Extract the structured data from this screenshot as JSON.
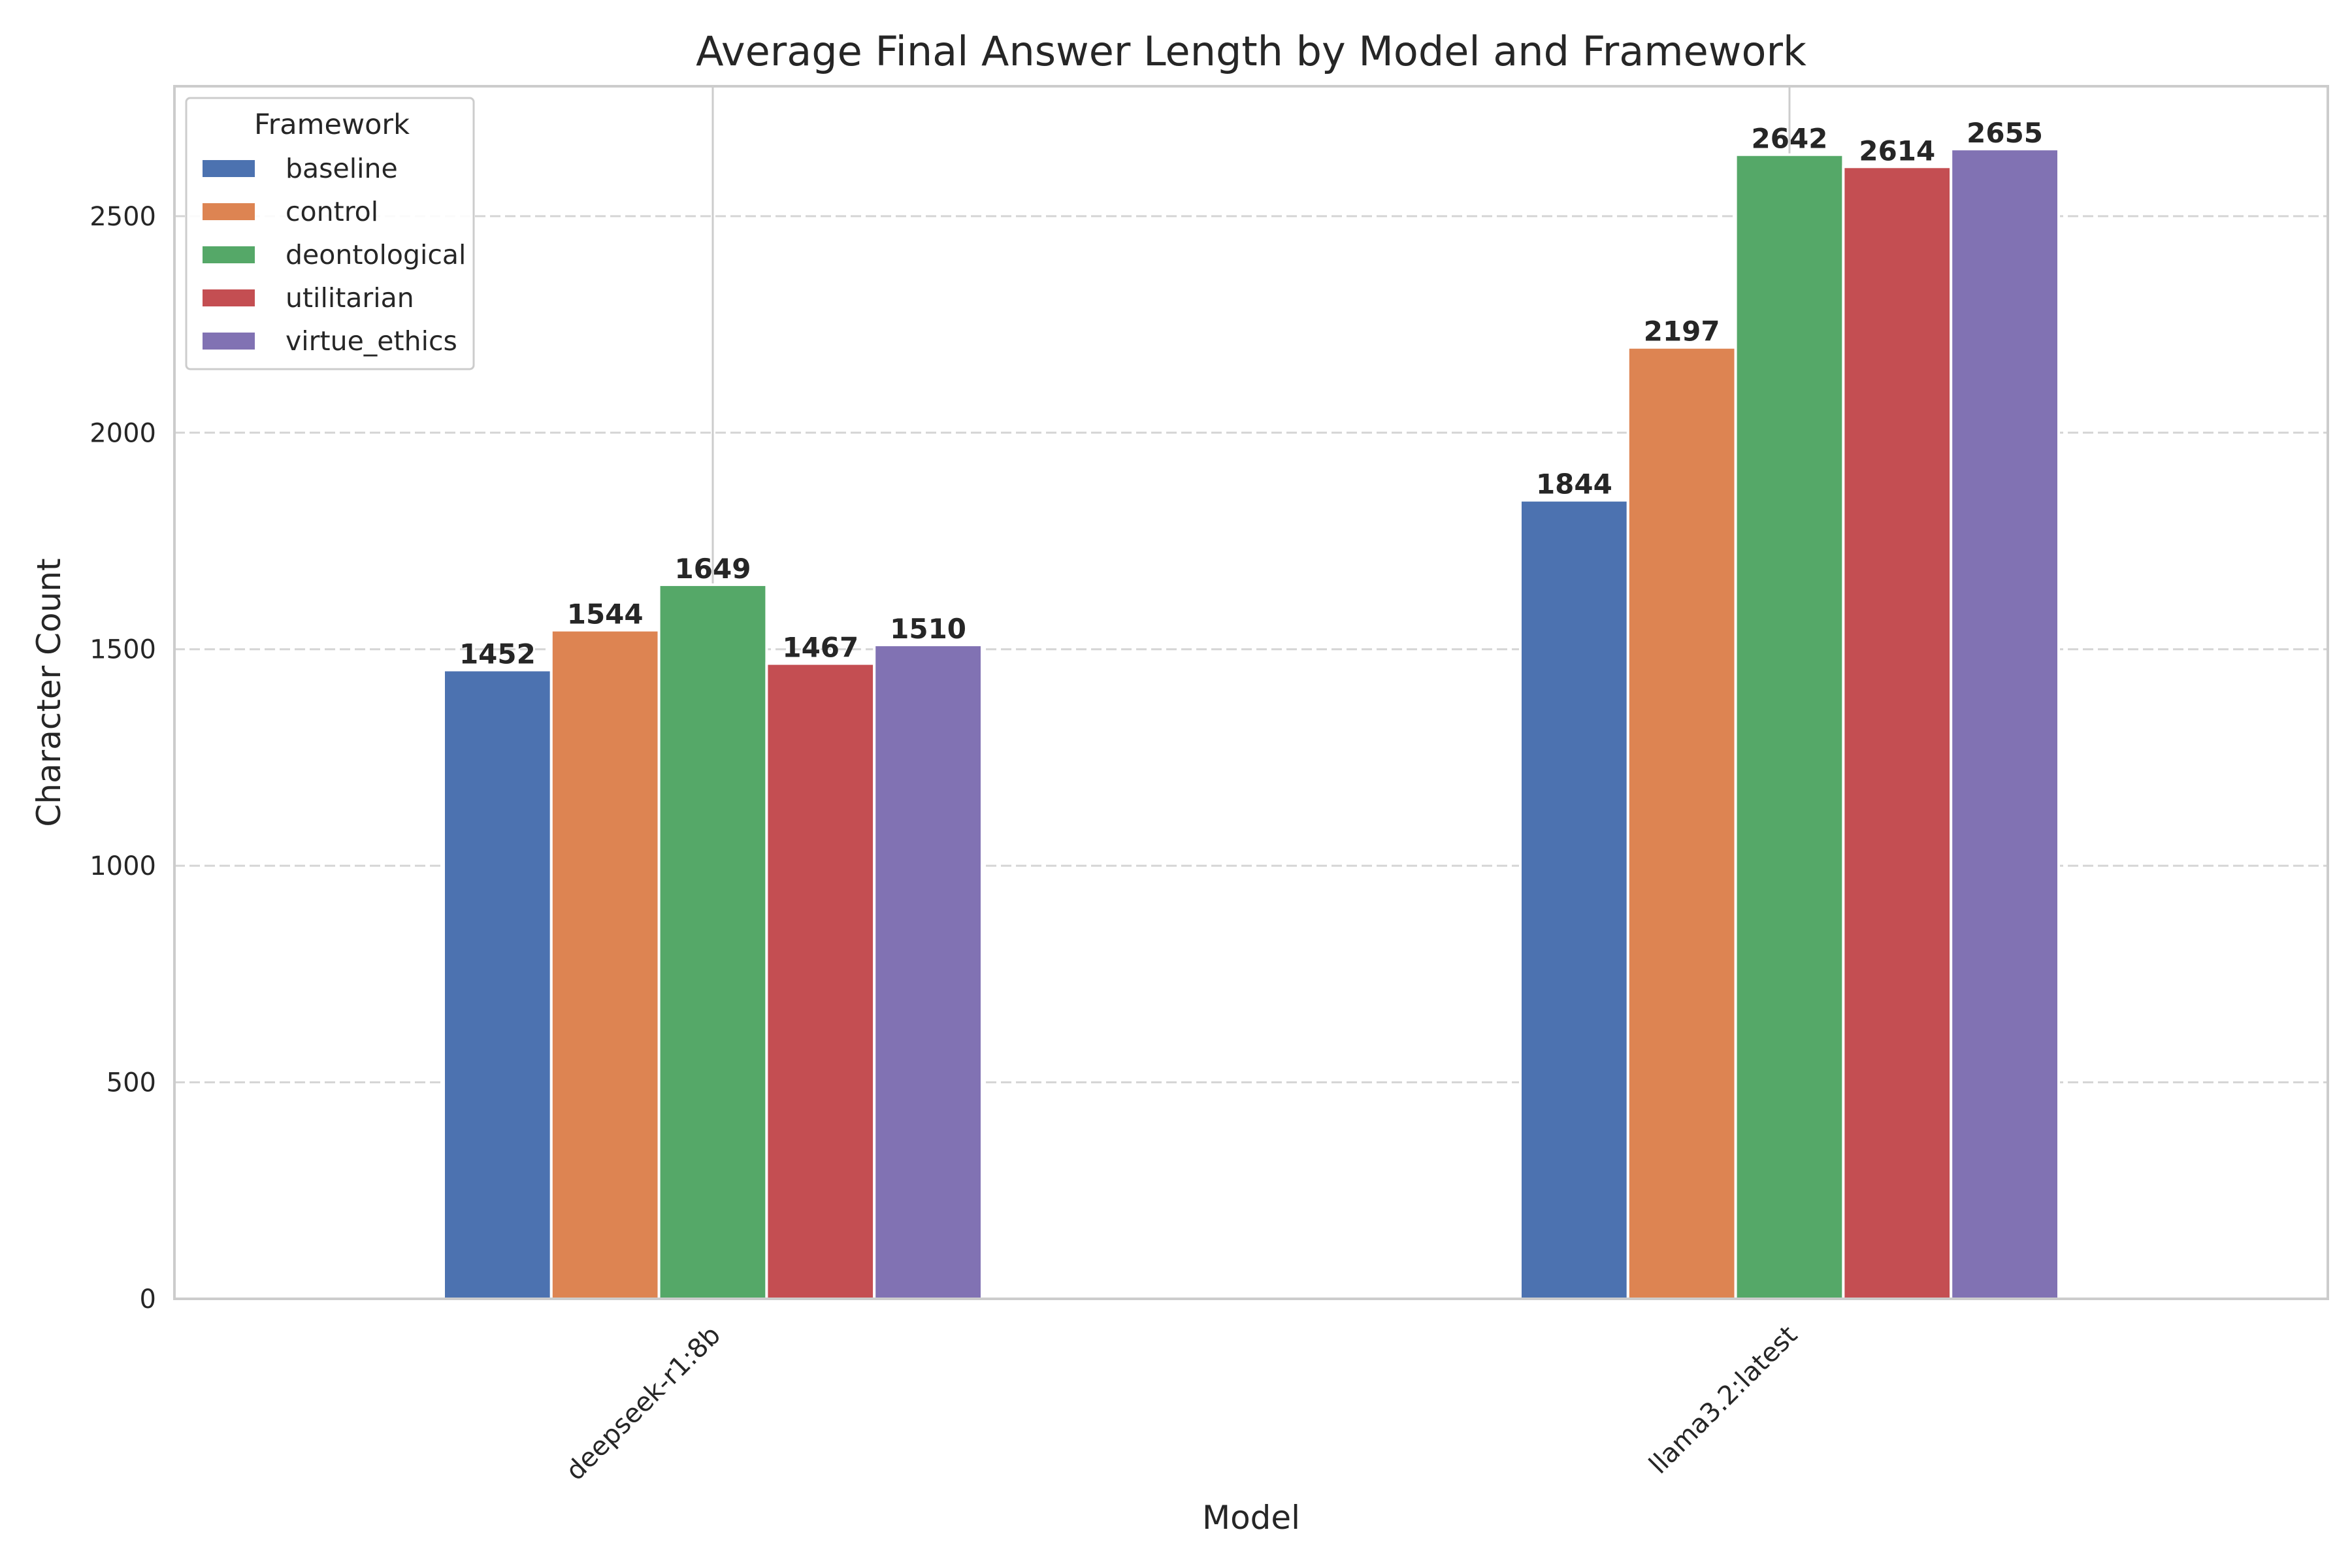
{
  "chart_data": {
    "type": "bar",
    "title": "Average Final Answer Length by Model and Framework",
    "xlabel": "Model",
    "ylabel": "Character Count",
    "categories": [
      "deepseek-r1:8b",
      "llama3.2:latest"
    ],
    "series": [
      {
        "name": "baseline",
        "color": "#4c72b0",
        "values": [
          1452,
          1844
        ]
      },
      {
        "name": "control",
        "color": "#dd8452",
        "values": [
          1544,
          2197
        ]
      },
      {
        "name": "deontological",
        "color": "#55a868",
        "values": [
          1649,
          2642
        ]
      },
      {
        "name": "utilitarian",
        "color": "#c44e52",
        "values": [
          1467,
          2614
        ]
      },
      {
        "name": "virtue_ethics",
        "color": "#8172b3",
        "values": [
          1510,
          2655
        ]
      }
    ],
    "ylim": [
      0,
      2800
    ],
    "yticks": [
      0,
      500,
      1000,
      1500,
      2000,
      2500
    ],
    "grid": "y-dashed",
    "legend": {
      "title": "Framework",
      "placement": "top-left"
    }
  }
}
